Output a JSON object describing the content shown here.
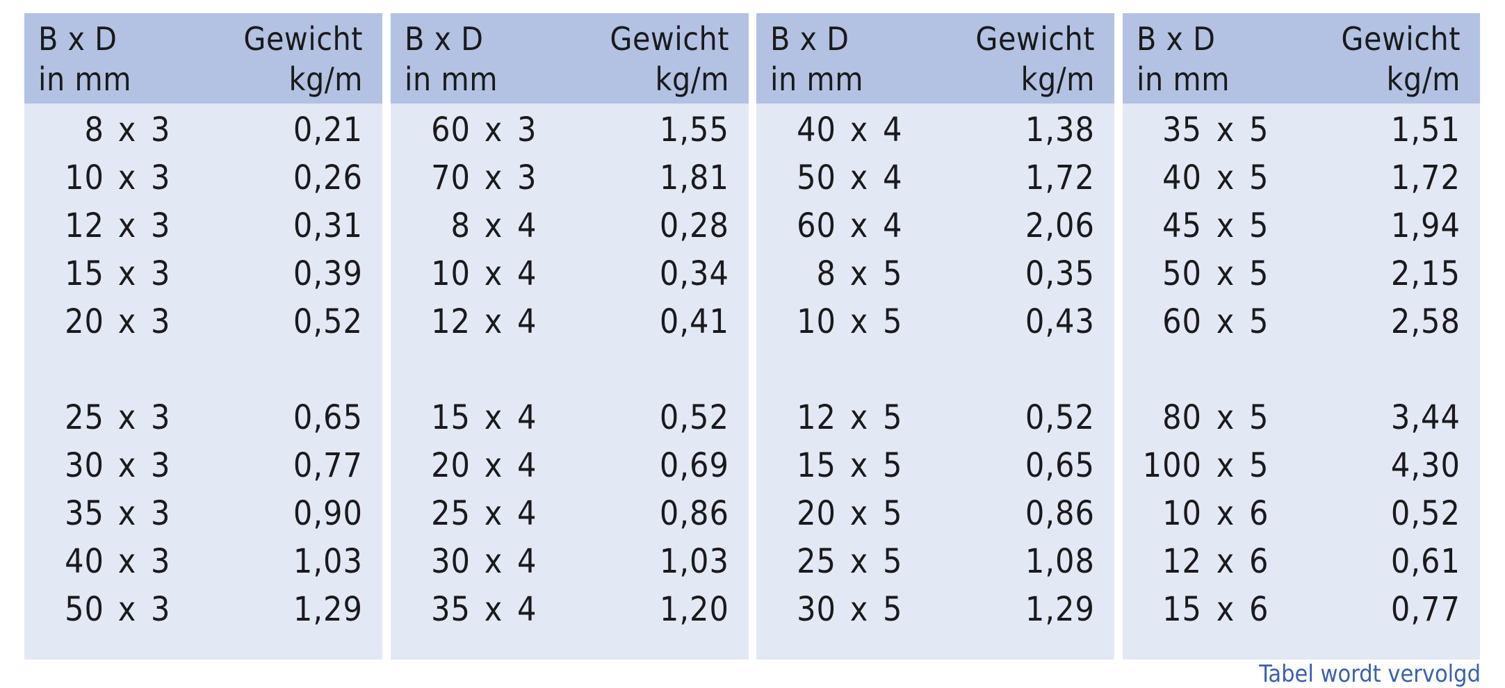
{
  "table": {
    "columns": [
      {
        "header": {
          "size_line1": "B x D",
          "size_line2": "in mm",
          "weight_line1": "Gewicht",
          "weight_line2": "kg/m"
        },
        "rows": [
          {
            "b": "8",
            "x": "x",
            "d": "3",
            "w": "0,21"
          },
          {
            "b": "10",
            "x": "x",
            "d": "3",
            "w": "0,26"
          },
          {
            "b": "12",
            "x": "x",
            "d": "3",
            "w": "0,31"
          },
          {
            "b": "15",
            "x": "x",
            "d": "3",
            "w": "0,39"
          },
          {
            "b": "20",
            "x": "x",
            "d": "3",
            "w": "0,52"
          },
          {
            "b": "25",
            "x": "x",
            "d": "3",
            "w": "0,65"
          },
          {
            "b": "30",
            "x": "x",
            "d": "3",
            "w": "0,77"
          },
          {
            "b": "35",
            "x": "x",
            "d": "3",
            "w": "0,90"
          },
          {
            "b": "40",
            "x": "x",
            "d": "3",
            "w": "1,03"
          },
          {
            "b": "50",
            "x": "x",
            "d": "3",
            "w": "1,29"
          }
        ]
      },
      {
        "header": {
          "size_line1": "B x D",
          "size_line2": "in mm",
          "weight_line1": "Gewicht",
          "weight_line2": "kg/m"
        },
        "rows": [
          {
            "b": "60",
            "x": "x",
            "d": "3",
            "w": "1,55"
          },
          {
            "b": "70",
            "x": "x",
            "d": "3",
            "w": "1,81"
          },
          {
            "b": "8",
            "x": "x",
            "d": "4",
            "w": "0,28"
          },
          {
            "b": "10",
            "x": "x",
            "d": "4",
            "w": "0,34"
          },
          {
            "b": "12",
            "x": "x",
            "d": "4",
            "w": "0,41"
          },
          {
            "b": "15",
            "x": "x",
            "d": "4",
            "w": "0,52"
          },
          {
            "b": "20",
            "x": "x",
            "d": "4",
            "w": "0,69"
          },
          {
            "b": "25",
            "x": "x",
            "d": "4",
            "w": "0,86"
          },
          {
            "b": "30",
            "x": "x",
            "d": "4",
            "w": "1,03"
          },
          {
            "b": "35",
            "x": "x",
            "d": "4",
            "w": "1,20"
          }
        ]
      },
      {
        "header": {
          "size_line1": "B x D",
          "size_line2": "in mm",
          "weight_line1": "Gewicht",
          "weight_line2": "kg/m"
        },
        "rows": [
          {
            "b": "40",
            "x": "x",
            "d": "4",
            "w": "1,38"
          },
          {
            "b": "50",
            "x": "x",
            "d": "4",
            "w": "1,72"
          },
          {
            "b": "60",
            "x": "x",
            "d": "4",
            "w": "2,06"
          },
          {
            "b": "8",
            "x": "x",
            "d": "5",
            "w": "0,35"
          },
          {
            "b": "10",
            "x": "x",
            "d": "5",
            "w": "0,43"
          },
          {
            "b": "12",
            "x": "x",
            "d": "5",
            "w": "0,52"
          },
          {
            "b": "15",
            "x": "x",
            "d": "5",
            "w": "0,65"
          },
          {
            "b": "20",
            "x": "x",
            "d": "5",
            "w": "0,86"
          },
          {
            "b": "25",
            "x": "x",
            "d": "5",
            "w": "1,08"
          },
          {
            "b": "30",
            "x": "x",
            "d": "5",
            "w": "1,29"
          }
        ]
      },
      {
        "header": {
          "size_line1": "B x D",
          "size_line2": "in mm",
          "weight_line1": "Gewicht",
          "weight_line2": "kg/m"
        },
        "rows": [
          {
            "b": "35",
            "x": "x",
            "d": "5",
            "w": "1,51"
          },
          {
            "b": "40",
            "x": "x",
            "d": "5",
            "w": "1,72"
          },
          {
            "b": "45",
            "x": "x",
            "d": "5",
            "w": "1,94"
          },
          {
            "b": "50",
            "x": "x",
            "d": "5",
            "w": "2,15"
          },
          {
            "b": "60",
            "x": "x",
            "d": "5",
            "w": "2,58"
          },
          {
            "b": "80",
            "x": "x",
            "d": "5",
            "w": "3,44"
          },
          {
            "b": "100",
            "x": "x",
            "d": "5",
            "w": "4,30"
          },
          {
            "b": "10",
            "x": "x",
            "d": "6",
            "w": "0,52"
          },
          {
            "b": "12",
            "x": "x",
            "d": "6",
            "w": "0,61"
          },
          {
            "b": "15",
            "x": "x",
            "d": "6",
            "w": "0,77"
          }
        ]
      }
    ]
  },
  "footer": {
    "continued_note": "Tabel wordt vervolgd"
  },
  "colors": {
    "header_bg": "#b3c2e3",
    "body_bg": "#e3e8f5",
    "text": "#1a1a1a",
    "note": "#3a5fb0"
  }
}
